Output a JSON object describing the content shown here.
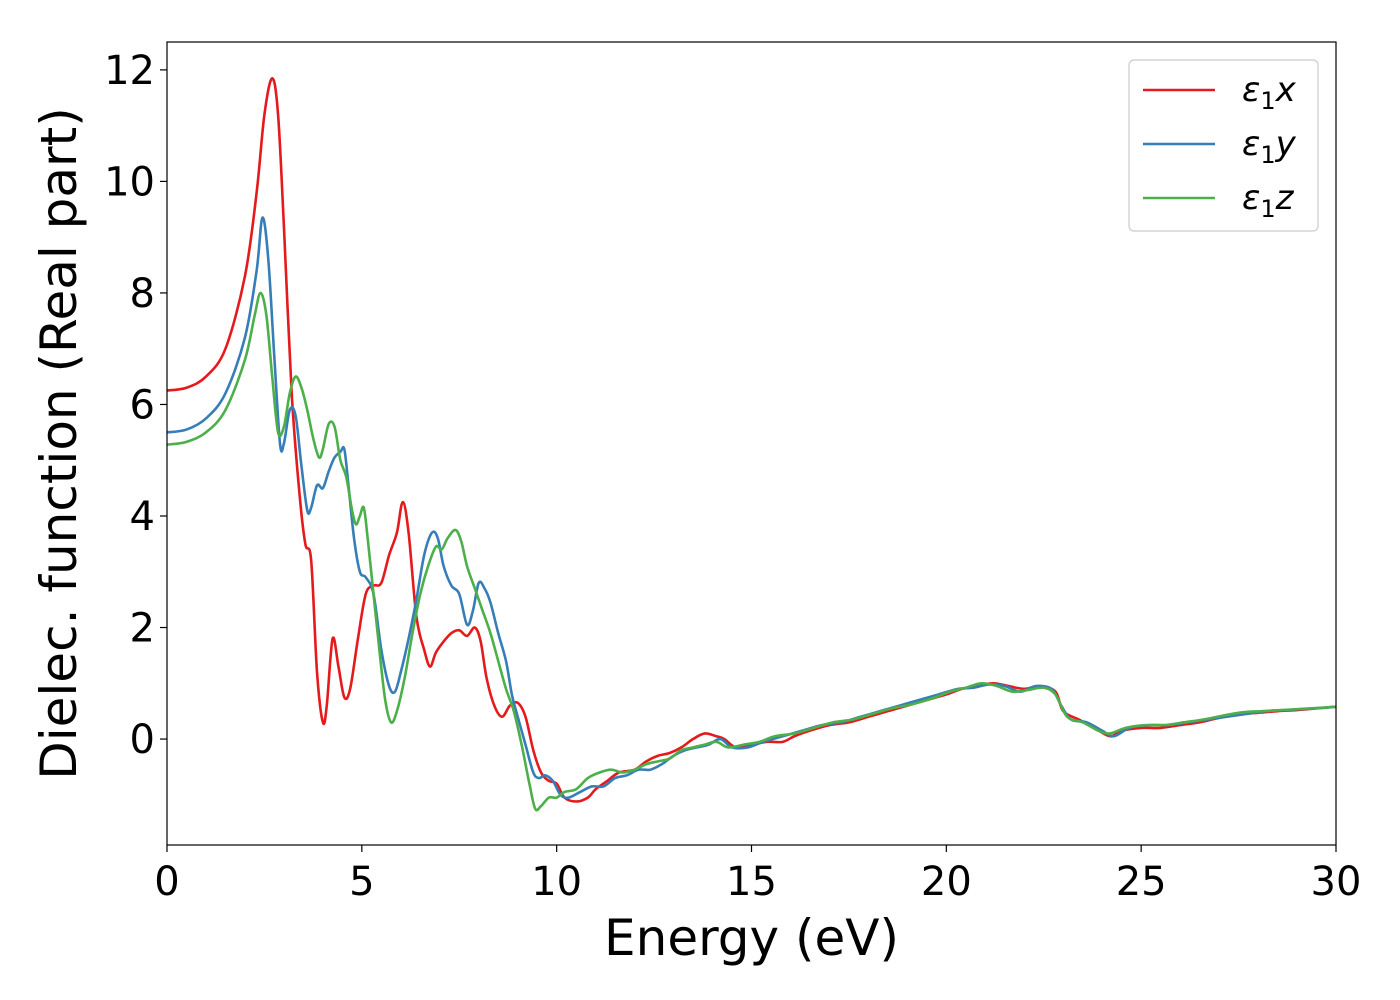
{
  "chart_data": {
    "type": "line",
    "title": "",
    "xlabel": "Energy (eV)",
    "ylabel": "Dielec. function (Real part)",
    "xlim": [
      0,
      30
    ],
    "ylim": [
      -1.9,
      12.5
    ],
    "xticks": [
      0,
      5,
      10,
      15,
      20,
      25,
      30
    ],
    "yticks": [
      0,
      2,
      4,
      6,
      8,
      10,
      12
    ],
    "grid": false,
    "legend_position": "top-right",
    "series": [
      {
        "name": "ε₁x",
        "legend_base": "ε",
        "legend_sub": "1",
        "legend_tail": "x",
        "color": "#e41a1c",
        "points": [
          [
            0,
            6.25
          ],
          [
            0.5,
            6.3
          ],
          [
            1.0,
            6.5
          ],
          [
            1.5,
            7.0
          ],
          [
            2.0,
            8.3
          ],
          [
            2.3,
            9.8
          ],
          [
            2.5,
            11.2
          ],
          [
            2.7,
            11.85
          ],
          [
            2.85,
            11.2
          ],
          [
            3.0,
            9.2
          ],
          [
            3.2,
            6.2
          ],
          [
            3.4,
            4.4
          ],
          [
            3.55,
            3.5
          ],
          [
            3.7,
            3.2
          ],
          [
            3.85,
            1.2
          ],
          [
            4.0,
            0.3
          ],
          [
            4.1,
            0.6
          ],
          [
            4.25,
            1.8
          ],
          [
            4.4,
            1.3
          ],
          [
            4.55,
            0.75
          ],
          [
            4.7,
            0.9
          ],
          [
            4.9,
            1.8
          ],
          [
            5.1,
            2.6
          ],
          [
            5.3,
            2.75
          ],
          [
            5.5,
            2.8
          ],
          [
            5.7,
            3.3
          ],
          [
            5.9,
            3.7
          ],
          [
            6.05,
            4.25
          ],
          [
            6.2,
            3.7
          ],
          [
            6.4,
            2.2
          ],
          [
            6.6,
            1.6
          ],
          [
            6.75,
            1.3
          ],
          [
            6.9,
            1.55
          ],
          [
            7.1,
            1.75
          ],
          [
            7.3,
            1.9
          ],
          [
            7.5,
            1.95
          ],
          [
            7.7,
            1.85
          ],
          [
            7.9,
            2.0
          ],
          [
            8.05,
            1.75
          ],
          [
            8.2,
            1.1
          ],
          [
            8.4,
            0.6
          ],
          [
            8.6,
            0.4
          ],
          [
            8.8,
            0.6
          ],
          [
            9.0,
            0.65
          ],
          [
            9.2,
            0.4
          ],
          [
            9.4,
            -0.2
          ],
          [
            9.6,
            -0.6
          ],
          [
            9.8,
            -0.75
          ],
          [
            10.0,
            -0.8
          ],
          [
            10.2,
            -1.05
          ],
          [
            10.5,
            -1.12
          ],
          [
            10.8,
            -1.05
          ],
          [
            11.0,
            -0.9
          ],
          [
            11.3,
            -0.75
          ],
          [
            11.6,
            -0.6
          ],
          [
            12.0,
            -0.55
          ],
          [
            12.3,
            -0.4
          ],
          [
            12.6,
            -0.3
          ],
          [
            12.9,
            -0.25
          ],
          [
            13.2,
            -0.15
          ],
          [
            13.5,
            0.0
          ],
          [
            13.8,
            0.1
          ],
          [
            14.1,
            0.05
          ],
          [
            14.3,
            0.0
          ],
          [
            14.6,
            -0.15
          ],
          [
            15.0,
            -0.1
          ],
          [
            15.4,
            -0.05
          ],
          [
            15.8,
            -0.05
          ],
          [
            16.1,
            0.05
          ],
          [
            16.5,
            0.15
          ],
          [
            17.0,
            0.25
          ],
          [
            17.5,
            0.3
          ],
          [
            18.0,
            0.4
          ],
          [
            18.5,
            0.5
          ],
          [
            19.0,
            0.6
          ],
          [
            19.5,
            0.7
          ],
          [
            20.0,
            0.8
          ],
          [
            20.4,
            0.9
          ],
          [
            20.8,
            0.95
          ],
          [
            21.2,
            1.0
          ],
          [
            21.6,
            0.95
          ],
          [
            22.0,
            0.9
          ],
          [
            22.4,
            0.95
          ],
          [
            22.8,
            0.85
          ],
          [
            23.0,
            0.5
          ],
          [
            23.4,
            0.35
          ],
          [
            23.8,
            0.2
          ],
          [
            24.2,
            0.05
          ],
          [
            24.5,
            0.15
          ],
          [
            25.0,
            0.2
          ],
          [
            25.5,
            0.2
          ],
          [
            26.0,
            0.25
          ],
          [
            26.5,
            0.3
          ],
          [
            27.0,
            0.38
          ],
          [
            27.5,
            0.45
          ],
          [
            28.0,
            0.47
          ],
          [
            28.5,
            0.5
          ],
          [
            29.0,
            0.52
          ],
          [
            29.5,
            0.55
          ],
          [
            30,
            0.58
          ]
        ]
      },
      {
        "name": "ε₁y",
        "legend_base": "ε",
        "legend_sub": "1",
        "legend_tail": "y",
        "color": "#377eb8",
        "points": [
          [
            0,
            5.5
          ],
          [
            0.5,
            5.55
          ],
          [
            1.0,
            5.75
          ],
          [
            1.5,
            6.2
          ],
          [
            2.0,
            7.2
          ],
          [
            2.3,
            8.4
          ],
          [
            2.45,
            9.35
          ],
          [
            2.6,
            8.6
          ],
          [
            2.75,
            6.9
          ],
          [
            2.9,
            5.3
          ],
          [
            3.0,
            5.3
          ],
          [
            3.15,
            5.9
          ],
          [
            3.3,
            5.8
          ],
          [
            3.45,
            4.9
          ],
          [
            3.6,
            4.1
          ],
          [
            3.7,
            4.15
          ],
          [
            3.85,
            4.55
          ],
          [
            4.0,
            4.5
          ],
          [
            4.15,
            4.8
          ],
          [
            4.3,
            5.05
          ],
          [
            4.45,
            5.15
          ],
          [
            4.55,
            5.2
          ],
          [
            4.65,
            4.6
          ],
          [
            4.8,
            3.6
          ],
          [
            4.95,
            3.0
          ],
          [
            5.1,
            2.9
          ],
          [
            5.3,
            2.6
          ],
          [
            5.5,
            1.6
          ],
          [
            5.7,
            0.95
          ],
          [
            5.85,
            0.85
          ],
          [
            6.0,
            1.2
          ],
          [
            6.2,
            1.8
          ],
          [
            6.4,
            2.5
          ],
          [
            6.6,
            3.3
          ],
          [
            6.8,
            3.7
          ],
          [
            6.95,
            3.6
          ],
          [
            7.1,
            3.1
          ],
          [
            7.3,
            2.75
          ],
          [
            7.5,
            2.6
          ],
          [
            7.7,
            2.05
          ],
          [
            7.85,
            2.3
          ],
          [
            8.0,
            2.8
          ],
          [
            8.15,
            2.7
          ],
          [
            8.3,
            2.45
          ],
          [
            8.5,
            1.9
          ],
          [
            8.7,
            1.4
          ],
          [
            8.85,
            0.8
          ],
          [
            9.0,
            0.4
          ],
          [
            9.2,
            -0.1
          ],
          [
            9.4,
            -0.6
          ],
          [
            9.55,
            -0.7
          ],
          [
            9.7,
            -0.65
          ],
          [
            9.9,
            -0.75
          ],
          [
            10.1,
            -1.0
          ],
          [
            10.3,
            -1.05
          ],
          [
            10.6,
            -0.95
          ],
          [
            10.9,
            -0.85
          ],
          [
            11.2,
            -0.85
          ],
          [
            11.5,
            -0.7
          ],
          [
            11.8,
            -0.65
          ],
          [
            12.1,
            -0.55
          ],
          [
            12.4,
            -0.55
          ],
          [
            12.7,
            -0.45
          ],
          [
            13.0,
            -0.3
          ],
          [
            13.3,
            -0.2
          ],
          [
            13.6,
            -0.15
          ],
          [
            13.9,
            -0.1
          ],
          [
            14.2,
            0.0
          ],
          [
            14.5,
            -0.15
          ],
          [
            14.9,
            -0.15
          ],
          [
            15.3,
            -0.05
          ],
          [
            15.8,
            0.05
          ],
          [
            16.3,
            0.15
          ],
          [
            16.8,
            0.25
          ],
          [
            17.3,
            0.3
          ],
          [
            17.8,
            0.4
          ],
          [
            18.3,
            0.5
          ],
          [
            18.8,
            0.6
          ],
          [
            19.3,
            0.7
          ],
          [
            19.8,
            0.8
          ],
          [
            20.3,
            0.9
          ],
          [
            20.7,
            0.92
          ],
          [
            21.1,
            0.98
          ],
          [
            21.5,
            0.95
          ],
          [
            21.9,
            0.85
          ],
          [
            22.3,
            0.95
          ],
          [
            22.7,
            0.9
          ],
          [
            22.95,
            0.6
          ],
          [
            23.2,
            0.35
          ],
          [
            23.6,
            0.3
          ],
          [
            24.0,
            0.15
          ],
          [
            24.3,
            0.05
          ],
          [
            24.7,
            0.2
          ],
          [
            25.2,
            0.25
          ],
          [
            25.7,
            0.25
          ],
          [
            26.2,
            0.3
          ],
          [
            26.7,
            0.35
          ],
          [
            27.2,
            0.4
          ],
          [
            27.7,
            0.45
          ],
          [
            28.2,
            0.5
          ],
          [
            28.7,
            0.52
          ],
          [
            29.2,
            0.54
          ],
          [
            29.7,
            0.56
          ],
          [
            30,
            0.58
          ]
        ]
      },
      {
        "name": "ε₁z",
        "legend_base": "ε",
        "legend_sub": "1",
        "legend_tail": "z",
        "color": "#4daf4a",
        "points": [
          [
            0,
            5.28
          ],
          [
            0.5,
            5.33
          ],
          [
            1.0,
            5.5
          ],
          [
            1.5,
            5.9
          ],
          [
            2.0,
            6.8
          ],
          [
            2.25,
            7.6
          ],
          [
            2.4,
            8.0
          ],
          [
            2.55,
            7.6
          ],
          [
            2.7,
            6.5
          ],
          [
            2.85,
            5.5
          ],
          [
            3.0,
            5.6
          ],
          [
            3.15,
            6.2
          ],
          [
            3.3,
            6.5
          ],
          [
            3.45,
            6.3
          ],
          [
            3.6,
            5.9
          ],
          [
            3.75,
            5.4
          ],
          [
            3.9,
            5.05
          ],
          [
            4.0,
            5.2
          ],
          [
            4.15,
            5.65
          ],
          [
            4.3,
            5.6
          ],
          [
            4.45,
            5.0
          ],
          [
            4.6,
            4.7
          ],
          [
            4.75,
            4.1
          ],
          [
            4.85,
            3.85
          ],
          [
            4.95,
            4.0
          ],
          [
            5.05,
            4.15
          ],
          [
            5.15,
            3.6
          ],
          [
            5.3,
            2.6
          ],
          [
            5.45,
            1.6
          ],
          [
            5.6,
            0.7
          ],
          [
            5.75,
            0.3
          ],
          [
            5.9,
            0.5
          ],
          [
            6.1,
            1.1
          ],
          [
            6.3,
            1.9
          ],
          [
            6.5,
            2.6
          ],
          [
            6.7,
            3.1
          ],
          [
            6.9,
            3.45
          ],
          [
            7.05,
            3.4
          ],
          [
            7.2,
            3.6
          ],
          [
            7.4,
            3.75
          ],
          [
            7.55,
            3.55
          ],
          [
            7.7,
            3.1
          ],
          [
            7.9,
            2.7
          ],
          [
            8.1,
            2.3
          ],
          [
            8.3,
            1.9
          ],
          [
            8.5,
            1.4
          ],
          [
            8.7,
            0.9
          ],
          [
            8.9,
            0.5
          ],
          [
            9.1,
            -0.1
          ],
          [
            9.3,
            -0.8
          ],
          [
            9.45,
            -1.25
          ],
          [
            9.6,
            -1.2
          ],
          [
            9.8,
            -1.05
          ],
          [
            10.0,
            -1.05
          ],
          [
            10.2,
            -0.95
          ],
          [
            10.5,
            -0.9
          ],
          [
            10.8,
            -0.7
          ],
          [
            11.1,
            -0.6
          ],
          [
            11.4,
            -0.55
          ],
          [
            11.7,
            -0.6
          ],
          [
            12.0,
            -0.55
          ],
          [
            12.3,
            -0.45
          ],
          [
            12.6,
            -0.4
          ],
          [
            12.9,
            -0.35
          ],
          [
            13.2,
            -0.2
          ],
          [
            13.5,
            -0.15
          ],
          [
            13.8,
            -0.1
          ],
          [
            14.1,
            -0.05
          ],
          [
            14.4,
            -0.15
          ],
          [
            14.8,
            -0.1
          ],
          [
            15.2,
            -0.05
          ],
          [
            15.6,
            0.05
          ],
          [
            16.1,
            0.1
          ],
          [
            16.6,
            0.2
          ],
          [
            17.1,
            0.3
          ],
          [
            17.6,
            0.35
          ],
          [
            18.1,
            0.45
          ],
          [
            18.6,
            0.55
          ],
          [
            19.1,
            0.62
          ],
          [
            19.6,
            0.72
          ],
          [
            20.1,
            0.85
          ],
          [
            20.5,
            0.92
          ],
          [
            20.9,
            1.0
          ],
          [
            21.3,
            0.95
          ],
          [
            21.7,
            0.85
          ],
          [
            22.1,
            0.88
          ],
          [
            22.5,
            0.92
          ],
          [
            22.8,
            0.8
          ],
          [
            23.1,
            0.4
          ],
          [
            23.5,
            0.3
          ],
          [
            23.9,
            0.15
          ],
          [
            24.2,
            0.1
          ],
          [
            24.6,
            0.2
          ],
          [
            25.1,
            0.25
          ],
          [
            25.6,
            0.25
          ],
          [
            26.1,
            0.3
          ],
          [
            26.6,
            0.35
          ],
          [
            27.1,
            0.42
          ],
          [
            27.6,
            0.48
          ],
          [
            28.1,
            0.5
          ],
          [
            28.6,
            0.52
          ],
          [
            29.1,
            0.54
          ],
          [
            29.6,
            0.56
          ],
          [
            30,
            0.58
          ]
        ]
      }
    ]
  }
}
